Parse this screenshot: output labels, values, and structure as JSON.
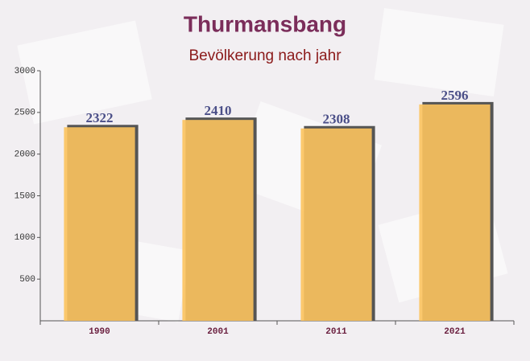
{
  "chart_data": {
    "type": "bar",
    "title": "Thurmansbang",
    "subtitle": "Bevölkerung nach jahr",
    "categories": [
      "1990",
      "2001",
      "2011",
      "2021"
    ],
    "values": [
      2322,
      2410,
      2308,
      2596
    ],
    "color": "#fcc35e",
    "ylim": [
      0,
      3000
    ],
    "yticks": [
      500,
      1000,
      1500,
      2000,
      2500,
      3000
    ],
    "grid": false
  }
}
